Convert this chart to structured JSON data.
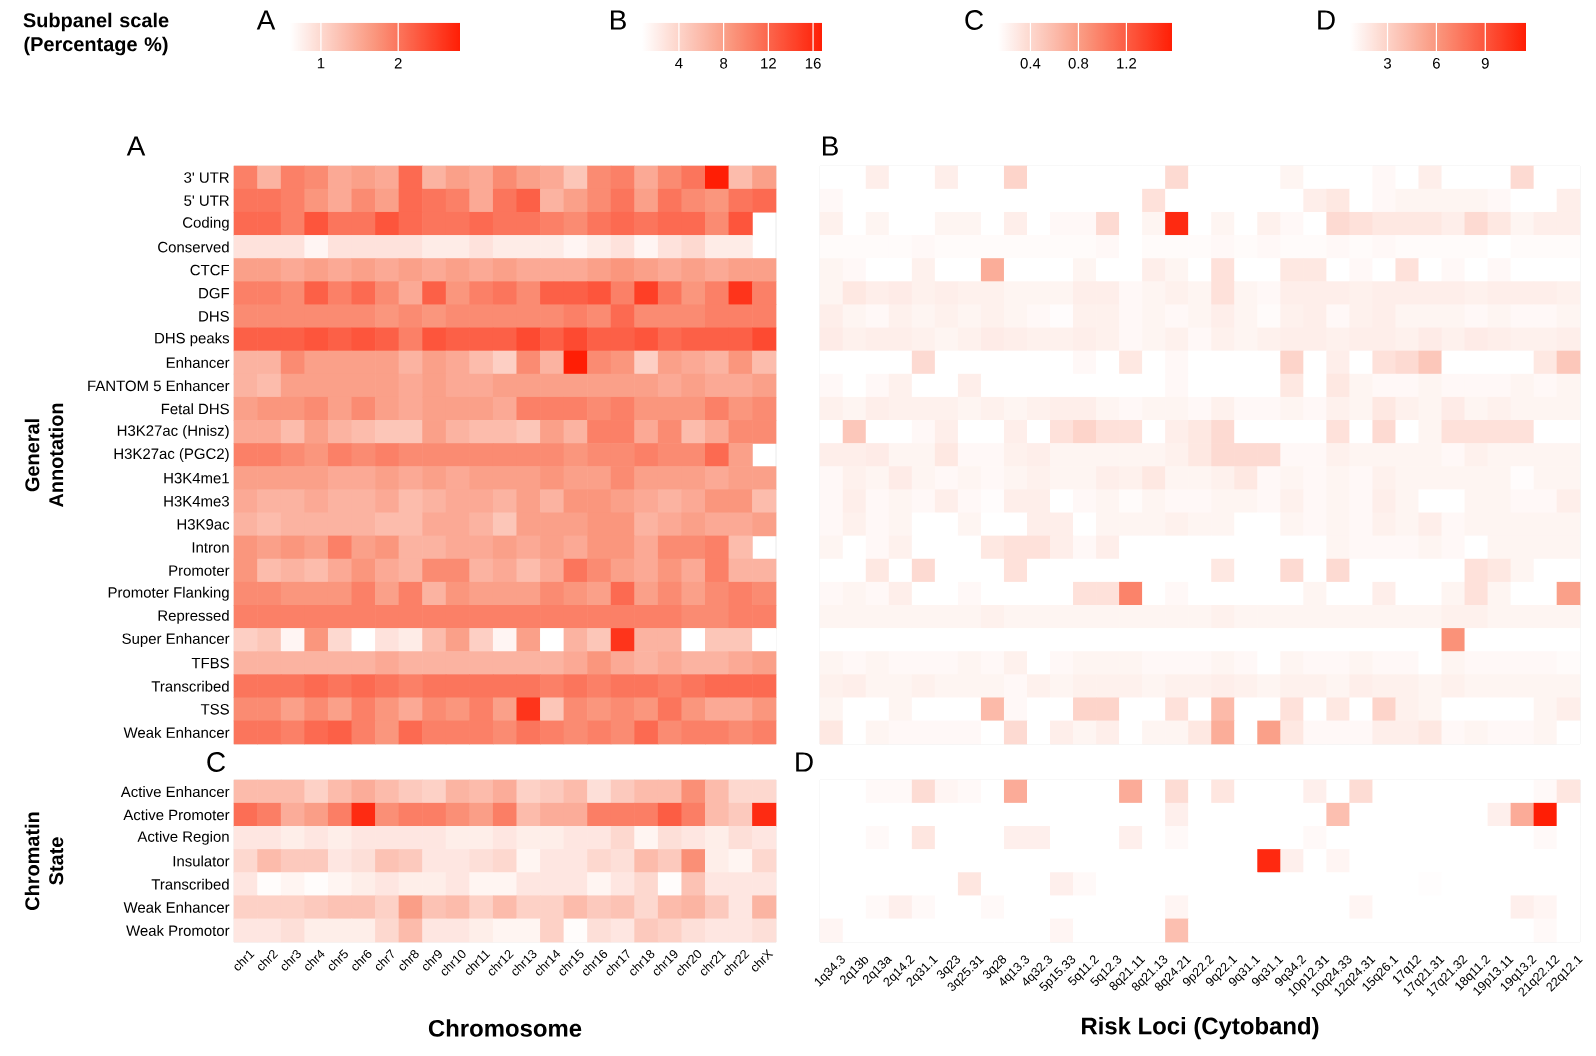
{
  "chart_data": [
    {
      "type": "heatmap",
      "title": "A",
      "ylabel": "General Annotation",
      "clabel": "A",
      "annotations": [
        "Subpanel scale (Percentage %)"
      ],
      "clim": [
        0.6,
        2.8
      ],
      "cticks": [
        1,
        2
      ],
      "categories": [
        null,
        null,
        null,
        null,
        null,
        null,
        null,
        null,
        null,
        null,
        null,
        null,
        null,
        null,
        null,
        null,
        null,
        null,
        null,
        null,
        null,
        null,
        null
      ],
      "y_categories": [
        "3' UTR",
        "5' UTR",
        "Coding",
        "Conserved",
        "CTCF",
        "DGF",
        "DHS",
        "DHS peaks",
        "Enhancer",
        "FANTOM 5 Enhancer",
        "Fetal DHS",
        "H3K27ac (Hnisz)",
        "H3K27ac (PGC2)",
        "H3K4me1",
        "H3K4me3",
        "H3K9ac",
        "Intron",
        "Promoter",
        "Promoter Flanking",
        "Repressed",
        "Super Enhancer",
        "TFBS",
        "Transcribed",
        "TSS",
        "Weak Enhancer"
      ],
      "cells": [
        [
          1.9,
          1.4,
          1.9,
          1.8,
          1.5,
          1.6,
          1.5,
          2.1,
          1.4,
          1.6,
          1.5,
          1.8,
          1.6,
          1.5,
          1.2,
          1.8,
          1.9,
          1.5,
          1.8,
          2.0,
          2.8,
          1.3,
          1.6
        ],
        [
          2.0,
          2.0,
          1.9,
          1.7,
          1.5,
          1.8,
          1.6,
          2.1,
          2.0,
          1.9,
          1.5,
          2.0,
          2.2,
          1.4,
          1.6,
          1.8,
          2.0,
          1.6,
          2.0,
          1.8,
          1.7,
          2.0,
          2.1
        ],
        [
          2.1,
          2.1,
          1.9,
          2.3,
          2.0,
          2.0,
          2.3,
          2.1,
          2.0,
          2.0,
          2.1,
          2.0,
          2.0,
          1.9,
          1.8,
          2.0,
          2.1,
          2.0,
          2.1,
          2.1,
          1.8,
          2.3,
          null
        ],
        [
          0.9,
          0.9,
          0.9,
          0.7,
          0.9,
          0.9,
          0.9,
          0.9,
          0.8,
          0.8,
          0.9,
          0.8,
          0.8,
          0.8,
          0.7,
          0.8,
          0.9,
          0.7,
          0.9,
          1.0,
          0.8,
          0.8,
          null
        ],
        [
          1.6,
          1.6,
          1.5,
          1.6,
          1.5,
          1.6,
          1.5,
          1.6,
          1.5,
          1.6,
          1.5,
          1.6,
          1.5,
          1.5,
          1.5,
          1.6,
          1.7,
          1.6,
          1.5,
          1.6,
          1.5,
          1.6,
          1.6
        ],
        [
          1.9,
          1.9,
          1.8,
          2.2,
          1.9,
          2.1,
          1.8,
          1.5,
          2.2,
          1.7,
          1.9,
          2.0,
          1.8,
          2.2,
          2.2,
          2.3,
          1.9,
          2.5,
          2.0,
          1.7,
          1.9,
          2.6,
          1.9
        ],
        [
          1.8,
          1.8,
          1.8,
          1.8,
          1.8,
          1.8,
          1.7,
          1.8,
          1.7,
          1.8,
          1.8,
          1.8,
          1.8,
          1.8,
          1.9,
          1.8,
          2.1,
          1.8,
          1.8,
          1.8,
          1.9,
          1.9,
          1.9
        ],
        [
          2.2,
          2.2,
          2.2,
          2.3,
          2.2,
          2.3,
          2.2,
          1.9,
          2.3,
          2.2,
          2.2,
          2.2,
          2.4,
          2.2,
          2.4,
          2.2,
          2.2,
          2.3,
          2.1,
          2.2,
          2.2,
          2.2,
          2.4
        ],
        [
          1.4,
          1.4,
          1.8,
          1.6,
          1.6,
          1.6,
          1.6,
          1.4,
          1.6,
          1.5,
          1.3,
          1.1,
          1.8,
          1.4,
          2.8,
          1.8,
          1.7,
          1.1,
          1.6,
          1.5,
          1.4,
          1.7,
          1.3
        ],
        [
          1.4,
          1.3,
          1.6,
          1.6,
          1.6,
          1.6,
          1.6,
          1.5,
          1.6,
          1.5,
          1.5,
          1.6,
          1.6,
          1.6,
          1.6,
          1.6,
          1.6,
          1.6,
          1.5,
          1.6,
          1.5,
          1.5,
          1.6
        ],
        [
          1.6,
          1.7,
          1.7,
          1.8,
          1.6,
          1.8,
          1.6,
          1.5,
          1.6,
          1.6,
          1.6,
          1.5,
          1.9,
          1.9,
          1.9,
          1.8,
          1.9,
          1.7,
          1.7,
          1.7,
          1.9,
          1.7,
          1.8
        ],
        [
          1.5,
          1.5,
          1.3,
          1.6,
          1.4,
          1.3,
          1.2,
          1.2,
          1.6,
          1.4,
          1.3,
          1.3,
          1.2,
          1.6,
          1.4,
          1.9,
          1.9,
          1.5,
          1.8,
          1.3,
          1.5,
          1.8,
          1.8
        ],
        [
          1.9,
          1.9,
          1.8,
          1.7,
          1.9,
          1.8,
          1.9,
          1.8,
          1.8,
          1.8,
          1.8,
          1.8,
          1.8,
          1.8,
          1.7,
          1.8,
          1.8,
          1.9,
          1.8,
          1.8,
          2.1,
          1.6,
          null
        ],
        [
          1.6,
          1.6,
          1.6,
          1.6,
          1.5,
          1.5,
          1.6,
          1.5,
          1.6,
          1.5,
          1.6,
          1.6,
          1.6,
          1.7,
          1.6,
          1.6,
          1.8,
          1.6,
          1.6,
          1.6,
          1.5,
          1.6,
          1.6
        ],
        [
          1.5,
          1.4,
          1.4,
          1.5,
          1.4,
          1.4,
          1.5,
          1.3,
          1.4,
          1.5,
          1.5,
          1.4,
          1.6,
          1.4,
          1.7,
          1.7,
          1.6,
          1.5,
          1.4,
          1.5,
          1.7,
          1.7,
          1.3
        ],
        [
          1.4,
          1.3,
          1.4,
          1.4,
          1.4,
          1.4,
          1.3,
          1.3,
          1.5,
          1.5,
          1.4,
          1.2,
          1.6,
          1.6,
          1.6,
          1.7,
          1.7,
          1.4,
          1.5,
          1.6,
          1.5,
          1.5,
          1.6
        ],
        [
          1.7,
          1.6,
          1.7,
          1.6,
          1.9,
          1.6,
          1.7,
          1.4,
          1.4,
          1.5,
          1.5,
          1.6,
          1.5,
          1.6,
          1.5,
          1.7,
          1.7,
          1.5,
          1.8,
          1.8,
          1.9,
          1.3,
          null
        ],
        [
          1.7,
          1.3,
          1.4,
          1.3,
          1.5,
          1.7,
          1.5,
          1.4,
          1.8,
          1.8,
          1.4,
          1.5,
          1.3,
          1.5,
          2.0,
          1.8,
          1.6,
          1.5,
          1.7,
          1.5,
          1.9,
          1.4,
          1.4
        ],
        [
          1.8,
          1.8,
          1.7,
          1.7,
          1.7,
          1.9,
          1.6,
          1.9,
          1.4,
          1.7,
          1.6,
          1.6,
          1.6,
          1.8,
          1.7,
          1.6,
          2.1,
          1.6,
          1.8,
          1.6,
          1.8,
          1.9,
          1.8
        ],
        [
          1.9,
          1.9,
          1.9,
          1.9,
          1.9,
          1.9,
          1.9,
          1.9,
          1.9,
          1.9,
          1.9,
          1.9,
          1.9,
          1.9,
          1.9,
          1.9,
          1.9,
          1.9,
          1.9,
          1.8,
          1.8,
          1.9,
          1.9
        ],
        [
          1.1,
          1.2,
          0.7,
          1.7,
          1.0,
          0.6,
          0.9,
          0.8,
          1.3,
          1.6,
          1.1,
          0.7,
          1.6,
          0.6,
          1.4,
          1.2,
          2.6,
          1.4,
          1.4,
          0.6,
          1.2,
          1.2,
          0.6
        ],
        [
          1.4,
          1.4,
          1.4,
          1.4,
          1.4,
          1.4,
          1.5,
          1.4,
          1.4,
          1.4,
          1.4,
          1.4,
          1.4,
          1.4,
          1.5,
          1.7,
          1.5,
          1.4,
          1.5,
          1.4,
          1.4,
          1.5,
          1.6
        ],
        [
          2.0,
          2.0,
          2.0,
          2.1,
          2.0,
          2.1,
          2.0,
          1.9,
          2.0,
          2.0,
          2.0,
          2.0,
          2.0,
          1.9,
          2.0,
          1.9,
          2.0,
          2.0,
          1.9,
          2.0,
          2.1,
          2.1,
          2.1
        ],
        [
          1.8,
          1.8,
          1.6,
          1.8,
          1.6,
          1.9,
          1.7,
          1.5,
          1.8,
          1.7,
          1.9,
          1.6,
          2.6,
          1.2,
          1.8,
          1.7,
          1.8,
          1.7,
          2.0,
          1.7,
          1.5,
          1.5,
          1.7
        ],
        [
          2.0,
          2.0,
          1.9,
          2.1,
          2.2,
          1.9,
          1.7,
          2.1,
          1.9,
          1.9,
          1.9,
          1.8,
          2.0,
          1.9,
          1.8,
          1.9,
          1.8,
          2.1,
          1.8,
          1.9,
          1.9,
          1.8,
          1.9
        ]
      ]
    },
    {
      "type": "heatmap",
      "title": "B",
      "clabel": "B",
      "clim": [
        0.7,
        16.8
      ],
      "cticks": [
        4,
        8,
        12,
        16
      ],
      "categories": [
        null,
        null,
        null,
        null,
        null,
        null,
        null,
        null,
        null,
        null,
        null,
        null,
        null,
        null,
        null,
        null,
        null,
        null,
        null,
        null,
        null,
        null,
        null,
        null,
        null,
        null,
        null,
        null,
        null,
        null,
        null,
        null,
        null
      ],
      "y_categories": [
        null,
        null,
        null,
        null,
        null,
        null,
        null,
        null,
        null,
        null,
        null,
        null,
        null,
        null,
        null,
        null,
        null,
        null,
        null,
        null,
        null,
        null,
        null,
        null,
        null
      ],
      "cells": [
        [
          0.7,
          0.7,
          2,
          0.7,
          0.7,
          2,
          0.7,
          0.7,
          4,
          0.7,
          0.7,
          0.7,
          0.7,
          0.7,
          0.7,
          3.5,
          0.7,
          0.7,
          0.7,
          0.7,
          1.5,
          0.7,
          0.7,
          0.7,
          1.2,
          0.7,
          2,
          0.7,
          0.7,
          0.7,
          3.5,
          0.7,
          0.7
        ],
        [
          1.2,
          0.7,
          0.7,
          0.7,
          0.7,
          0.7,
          0.7,
          0.7,
          0.7,
          0.7,
          0.7,
          0.7,
          0.7,
          0.7,
          3,
          0.7,
          0.7,
          0.7,
          0.7,
          0.7,
          0.7,
          2,
          2.5,
          0.7,
          1.2,
          1.5,
          1.5,
          1.5,
          1.5,
          1.2,
          0.7,
          0.7,
          2
        ],
        [
          1.8,
          0.7,
          1.5,
          0.7,
          0.7,
          1.5,
          1.5,
          0.7,
          2,
          0.7,
          1.2,
          1.2,
          3.5,
          0.7,
          1.5,
          16,
          0.7,
          1.5,
          0.7,
          1.8,
          1.2,
          0.7,
          3.5,
          3,
          2.5,
          2.5,
          2.5,
          2,
          3.5,
          2.5,
          1.5,
          2,
          2
        ],
        [
          1,
          1,
          1,
          1,
          1.2,
          1,
          1,
          1,
          1,
          1,
          1,
          1,
          1.2,
          0.7,
          1,
          1,
          1,
          1.2,
          1,
          1.2,
          1,
          1,
          1.2,
          1,
          1.2,
          1,
          1,
          1,
          1,
          0.7,
          1,
          1,
          1
        ],
        [
          1.5,
          1.2,
          0.7,
          0.7,
          1.8,
          0.7,
          0.7,
          7,
          0.7,
          0.7,
          0.7,
          1.5,
          0.7,
          0.7,
          2,
          1.5,
          0.7,
          3,
          0.7,
          0.7,
          2.5,
          2.5,
          0.7,
          1.2,
          0.7,
          3,
          0.7,
          1.2,
          0.7,
          1.2,
          0.7,
          0.7,
          0.7
        ],
        [
          1.5,
          2.5,
          2,
          2.2,
          1.8,
          2,
          1.8,
          1.8,
          1.5,
          1.5,
          1.5,
          2,
          2,
          1.2,
          1.5,
          1.8,
          1.5,
          3,
          1.5,
          1.2,
          2,
          2,
          2,
          1.8,
          2,
          2,
          2,
          2,
          1.8,
          2,
          2,
          2,
          1.8
        ],
        [
          2,
          1.5,
          1.2,
          1.8,
          1.5,
          1.8,
          1.5,
          1.8,
          1.5,
          1.2,
          0.9,
          1.8,
          1.8,
          1.2,
          1.5,
          1.2,
          1.5,
          2,
          1.5,
          1,
          1.8,
          2,
          1.2,
          1.8,
          2,
          1.5,
          1.5,
          1.5,
          1.2,
          1.5,
          1.2,
          1.2,
          1.5
        ],
        [
          2.2,
          1.8,
          2,
          2,
          1.8,
          1.5,
          1.8,
          2.2,
          2,
          1.8,
          1.8,
          2,
          1.8,
          1.2,
          1.5,
          1.8,
          1.2,
          1.8,
          1.5,
          1.8,
          2,
          2,
          1.8,
          2,
          2,
          1.8,
          2.2,
          1.8,
          2.2,
          2,
          1.8,
          1.8,
          2
        ],
        [
          0.7,
          0.7,
          0.7,
          0.7,
          3.5,
          0.7,
          0.7,
          0.7,
          0.7,
          0.7,
          0.7,
          1.2,
          0.7,
          2.5,
          0.7,
          1.2,
          0.7,
          0.7,
          0.7,
          0.7,
          4,
          0.7,
          2,
          0.7,
          3,
          3.5,
          5,
          0.7,
          0.7,
          0.7,
          0.7,
          2.5,
          5
        ],
        [
          1.2,
          0.7,
          1.2,
          1.8,
          0.7,
          0.7,
          2,
          0.7,
          0.7,
          0.7,
          0.7,
          0.7,
          0.7,
          0.7,
          0.7,
          1.2,
          0.7,
          0.7,
          0.7,
          0.7,
          2.5,
          0.7,
          2.5,
          1.5,
          1.2,
          1.2,
          1.5,
          1.2,
          1.2,
          1.2,
          1.5,
          1.2,
          1.5
        ],
        [
          1.8,
          1.5,
          2,
          1.8,
          1.8,
          1.8,
          1.5,
          1.8,
          1.5,
          1.8,
          2,
          2,
          1.5,
          1.2,
          1.5,
          1.5,
          1.2,
          1.8,
          1.2,
          1.2,
          1.5,
          1.2,
          1.8,
          1.5,
          2.5,
          1.8,
          1.5,
          2.2,
          1.5,
          1.8,
          1.5,
          1.5,
          1.5
        ],
        [
          0.7,
          5,
          0.7,
          0.7,
          1.2,
          2,
          0.7,
          0.7,
          2,
          0.7,
          3,
          4,
          3,
          3,
          0.7,
          2,
          2.5,
          3.5,
          0.7,
          0.7,
          0.7,
          0.7,
          3,
          0.7,
          3.5,
          0.7,
          1.5,
          3,
          3,
          3,
          3,
          0.7,
          0.7
        ],
        [
          2,
          2,
          2.2,
          1.5,
          1.5,
          2.5,
          1.2,
          1.2,
          1.8,
          2,
          1.5,
          1.5,
          1.5,
          1.5,
          1.5,
          1.8,
          2.5,
          3.5,
          3.5,
          3.5,
          1.2,
          1.2,
          1.8,
          1.5,
          1.5,
          1.5,
          1.5,
          1.2,
          1.8,
          1.5,
          1.5,
          1.5,
          1.5
        ],
        [
          1.2,
          1.8,
          1.5,
          2.2,
          1.5,
          1.2,
          1.5,
          1.2,
          1.5,
          1.8,
          1.5,
          1.5,
          2,
          1.8,
          2.5,
          1.5,
          1.5,
          1.8,
          2.5,
          1.2,
          1.5,
          1.2,
          1.5,
          1.2,
          1.8,
          1.5,
          1.5,
          1.5,
          1.5,
          1.5,
          0.9,
          1.5,
          1.5
        ],
        [
          1.2,
          2,
          1.2,
          1.5,
          1.2,
          2,
          1.2,
          0.9,
          2,
          2,
          0.7,
          1.2,
          1.5,
          1,
          1.5,
          1.2,
          1.2,
          1.5,
          1.5,
          1.2,
          1.8,
          1.2,
          1.5,
          1.2,
          2,
          1.5,
          0.7,
          0.7,
          1.5,
          1.5,
          1.2,
          1.2,
          2
        ],
        [
          1.2,
          1.8,
          1.2,
          1.5,
          0.7,
          0.7,
          1.5,
          0.7,
          0.7,
          2,
          2,
          0.7,
          1.5,
          1.5,
          1.5,
          1.8,
          1.5,
          1.5,
          0.7,
          0.7,
          1.5,
          1.2,
          1.5,
          1.2,
          1.8,
          1.5,
          2,
          1.2,
          1.5,
          1.5,
          1.5,
          1.5,
          1.5
        ],
        [
          1.5,
          0.7,
          1.2,
          1.8,
          0.7,
          0.7,
          0.7,
          2.5,
          3,
          3,
          2,
          1.2,
          2,
          0.7,
          0.7,
          0.7,
          0.7,
          0.7,
          0.7,
          0.7,
          0.7,
          0.7,
          1.5,
          1.2,
          1.2,
          1.2,
          1.5,
          1.2,
          0.7,
          1.5,
          1.5,
          1.5,
          1.5
        ],
        [
          0.7,
          0.7,
          2.5,
          0.7,
          3.5,
          0.7,
          0.7,
          0.7,
          3,
          0.7,
          0.7,
          0.7,
          0.7,
          0.7,
          0.7,
          0.7,
          0.7,
          2.5,
          0.7,
          0.7,
          3.5,
          0.7,
          3.5,
          0.7,
          0.7,
          0.7,
          0.7,
          0.7,
          3,
          2.5,
          1.5,
          0.7,
          0.7
        ],
        [
          1.2,
          1.5,
          1.2,
          2,
          0.7,
          0.7,
          1.2,
          0.7,
          0.7,
          0.7,
          0.7,
          3,
          3,
          10,
          0.7,
          1.2,
          0.7,
          0.7,
          0.7,
          0.7,
          0.7,
          1.5,
          0.7,
          0.7,
          2,
          0.7,
          0.7,
          1.5,
          3,
          1.5,
          0.7,
          0.7,
          8
        ],
        [
          1.5,
          1.5,
          1.5,
          1.5,
          1.5,
          1.5,
          1.5,
          1.8,
          1.5,
          1.5,
          1.5,
          1.5,
          1.5,
          1.5,
          1.5,
          1.5,
          1.5,
          1.8,
          1.5,
          1.5,
          1.5,
          1.5,
          1.5,
          1.5,
          1.5,
          1.5,
          1.5,
          1.8,
          1.8,
          1.5,
          1.5,
          1.5,
          1.5
        ],
        [
          0.7,
          0.7,
          0.7,
          0.7,
          0.7,
          0.7,
          0.7,
          0.7,
          0.7,
          0.7,
          0.7,
          0.7,
          0.7,
          0.7,
          0.7,
          0.7,
          0.7,
          0.7,
          0.7,
          0.7,
          0.7,
          0.7,
          0.7,
          0.7,
          0.7,
          0.7,
          0.7,
          9,
          0.7,
          0.7,
          0.7,
          0.7,
          0.7
        ],
        [
          1.5,
          1.2,
          1.5,
          1.2,
          1.2,
          1.2,
          1.5,
          1.2,
          1.8,
          0.7,
          1.2,
          1.5,
          1.5,
          1.5,
          1.2,
          1.2,
          1.2,
          1.5,
          1.2,
          0.7,
          1.5,
          1.2,
          1.2,
          1.5,
          1.2,
          1.2,
          0.7,
          1.5,
          1.2,
          1.2,
          1.2,
          1.2,
          1
        ],
        [
          1.8,
          2,
          1.5,
          1.5,
          1.8,
          1.5,
          1.5,
          1.5,
          1.2,
          1.8,
          1.5,
          1.8,
          1.8,
          1.8,
          1.5,
          1.8,
          1.8,
          2,
          1.8,
          1.5,
          1.8,
          1.8,
          1.5,
          2,
          1.8,
          1.8,
          1.5,
          1.8,
          1.5,
          1.5,
          1.5,
          1.5,
          1.5
        ],
        [
          1.5,
          0.7,
          0.7,
          1.5,
          0.7,
          0.7,
          0.7,
          6,
          1.2,
          0.7,
          0.7,
          4,
          4,
          0.7,
          0.7,
          3,
          0.7,
          6,
          0.7,
          0.7,
          3,
          0.7,
          2.5,
          0.7,
          4,
          1.8,
          1.5,
          0.7,
          0.7,
          0.7,
          0.7,
          1.5,
          2
        ],
        [
          2.5,
          0.7,
          1.5,
          1.2,
          1.2,
          1.2,
          1.2,
          0.7,
          3.5,
          0.7,
          2,
          1.5,
          2,
          0.7,
          1.5,
          1.5,
          2.5,
          7,
          0.7,
          8,
          2.5,
          1.2,
          1.2,
          1.2,
          2,
          2,
          2.5,
          1.2,
          1.5,
          1.2,
          1.2,
          1.5,
          0.7
        ]
      ]
    },
    {
      "type": "heatmap",
      "title": "C",
      "ylabel": "Chromatin State",
      "xlabel": "Chromosome",
      "clabel": "C",
      "clim": [
        0.13,
        1.58
      ],
      "cticks": [
        0.4,
        0.8,
        1.2
      ],
      "categories": [
        "chr1",
        "chr2",
        "chr3",
        "chr4",
        "chr5",
        "chr6",
        "chr7",
        "chr8",
        "chr9",
        "chr10",
        "chr11",
        "chr12",
        "chr13",
        "chr14",
        "chr15",
        "chr16",
        "chr17",
        "chr18",
        "chr19",
        "chr20",
        "chr21",
        "chr22",
        "chrX"
      ],
      "y_categories": [
        "Active Enhancer",
        "Active Promoter",
        "Active Region",
        "Insulator",
        "Transcribed",
        "Weak Enhancer",
        "Weak Promotor"
      ],
      "cells": [
        [
          0.6,
          0.6,
          0.6,
          0.45,
          0.6,
          0.7,
          0.6,
          0.5,
          0.45,
          0.65,
          0.6,
          0.7,
          0.45,
          0.5,
          0.6,
          0.35,
          0.5,
          0.6,
          0.6,
          0.9,
          0.6,
          0.4,
          0.4
        ],
        [
          1.1,
          1.0,
          0.7,
          0.8,
          1.0,
          1.5,
          0.9,
          1.0,
          1.0,
          0.9,
          0.8,
          1.0,
          0.6,
          0.7,
          0.7,
          1.0,
          1.0,
          1.0,
          1.2,
          1.0,
          0.6,
          0.5,
          1.5
        ],
        [
          0.3,
          0.3,
          0.25,
          0.3,
          0.25,
          0.3,
          0.3,
          0.3,
          0.3,
          0.25,
          0.25,
          0.3,
          0.25,
          0.25,
          0.3,
          0.3,
          0.4,
          0.2,
          0.35,
          0.3,
          0.25,
          0.35,
          0.3
        ],
        [
          0.4,
          0.6,
          0.5,
          0.5,
          0.3,
          0.35,
          0.55,
          0.5,
          0.3,
          0.3,
          0.35,
          0.4,
          0.2,
          0.3,
          0.3,
          0.4,
          0.35,
          0.6,
          0.5,
          0.9,
          0.25,
          0.2,
          0.4
        ],
        [
          0.3,
          0.15,
          0.2,
          0.15,
          0.2,
          0.25,
          0.3,
          0.25,
          0.25,
          0.3,
          0.2,
          0.2,
          0.3,
          0.3,
          0.3,
          0.2,
          0.3,
          0.4,
          0.15,
          0.55,
          0.3,
          0.3,
          0.3
        ],
        [
          0.45,
          0.45,
          0.45,
          0.5,
          0.55,
          0.55,
          0.45,
          0.8,
          0.55,
          0.6,
          0.45,
          0.6,
          0.45,
          0.45,
          0.6,
          0.5,
          0.55,
          0.4,
          0.6,
          0.65,
          0.5,
          0.3,
          0.65
        ],
        [
          0.3,
          0.3,
          0.35,
          0.25,
          0.25,
          0.25,
          0.4,
          0.6,
          0.3,
          0.3,
          0.25,
          0.2,
          0.2,
          0.45,
          0.15,
          0.35,
          0.3,
          0.5,
          0.45,
          0.35,
          0.3,
          0.3,
          0.35
        ]
      ]
    },
    {
      "type": "heatmap",
      "title": "D",
      "xlabel": "Risk Loci (Cytoband)",
      "clabel": "D",
      "clim": [
        0.7,
        11.5
      ],
      "cticks": [
        3,
        6,
        9
      ],
      "categories": [
        "1q34.3",
        "2q13b",
        "2q13a",
        "2q14.2",
        "2q31.1",
        "3q23",
        "3q25.31",
        "3q28",
        "4q13.3",
        "4q32.3",
        "5p15.33",
        "5q11.2",
        "5q12.3",
        "8q21.11",
        "8q21.13",
        "8q24.21",
        "9p22.2",
        "9q22.1",
        "9q31.1",
        "9q31.1",
        "9q34.2",
        "10p12.31",
        "10q24.33",
        "12q24.31",
        "15q26.1",
        "17q12",
        "17q21.31",
        "17q21.32",
        "18q11.2",
        "19p13.11",
        "19q13.2",
        "21q22.12",
        "22q12.1"
      ],
      "y_categories": [
        null,
        null,
        null,
        null,
        null,
        null,
        null
      ],
      "cells": [
        [
          0.7,
          0.7,
          1,
          1,
          2.5,
          1.2,
          1,
          0.7,
          5,
          0.7,
          0.7,
          0.7,
          0.7,
          5,
          0.7,
          2.5,
          0.7,
          2,
          0.7,
          0.7,
          0.7,
          1.5,
          0.7,
          2.5,
          0.7,
          0.7,
          0.7,
          0.7,
          0.7,
          0.7,
          0.7,
          1,
          2
        ],
        [
          0.7,
          0.7,
          0.7,
          0.7,
          0.7,
          0.7,
          0.7,
          0.7,
          0.7,
          0.7,
          0.7,
          0.7,
          0.7,
          0.7,
          0.7,
          1.5,
          0.7,
          0.7,
          0.7,
          0.7,
          0.7,
          0.7,
          4,
          0.7,
          0.7,
          0.7,
          0.7,
          0.7,
          0.7,
          1.5,
          5,
          11.5,
          0.7
        ],
        [
          0.7,
          0.7,
          1,
          0.7,
          2,
          0.7,
          0.7,
          0.7,
          1.5,
          1.5,
          0.7,
          0.7,
          0.7,
          1.5,
          0.7,
          1,
          0.7,
          0.7,
          0.7,
          0.7,
          0.7,
          1,
          0.7,
          0.7,
          0.7,
          0.7,
          0.7,
          0.7,
          0.7,
          0.7,
          0.7,
          1,
          0.7
        ],
        [
          0.7,
          0.7,
          0.7,
          0.7,
          0.7,
          0.7,
          0.7,
          0.7,
          0.7,
          0.7,
          0.7,
          0.7,
          0.7,
          0.7,
          0.7,
          0.7,
          0.7,
          0.7,
          0.7,
          11,
          1.5,
          0.7,
          1.2,
          0.7,
          0.7,
          0.7,
          0.7,
          0.7,
          0.7,
          0.7,
          0.7,
          0.7,
          0.7
        ],
        [
          0.7,
          0.7,
          0.7,
          0.7,
          0.7,
          0.7,
          2,
          0.7,
          0.7,
          0.7,
          1.5,
          1,
          0.7,
          0.7,
          0.7,
          0.7,
          0.7,
          0.7,
          0.7,
          0.7,
          0.7,
          0.7,
          0.7,
          0.7,
          0.7,
          0.7,
          0.8,
          0.7,
          0.7,
          0.7,
          0.7,
          0.7,
          0.7
        ],
        [
          0.7,
          0.7,
          1,
          1.5,
          1,
          0.7,
          0.7,
          1,
          0.7,
          0.7,
          0.7,
          0.7,
          0.7,
          0.7,
          0.7,
          1.2,
          0.7,
          0.7,
          0.7,
          0.7,
          0.7,
          0.7,
          0.7,
          1.2,
          0.7,
          0.7,
          0.7,
          0.7,
          0.7,
          0.7,
          1.5,
          1.2,
          0.7
        ],
        [
          1.2,
          0.7,
          0.7,
          0.7,
          0.7,
          0.7,
          0.7,
          0.7,
          0.7,
          0.7,
          1.2,
          0.7,
          0.7,
          0.7,
          0.7,
          4,
          0.7,
          0.7,
          0.7,
          0.7,
          0.7,
          0.7,
          0.7,
          0.7,
          0.7,
          0.7,
          0.7,
          0.7,
          0.7,
          0.7,
          0.7,
          1,
          0.7
        ]
      ]
    }
  ]
}
